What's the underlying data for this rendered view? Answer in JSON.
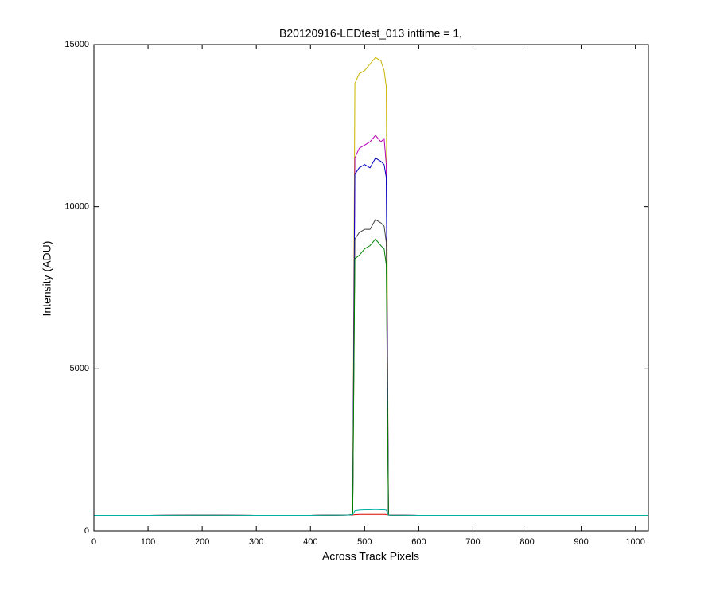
{
  "chart_data": {
    "type": "line",
    "title": "B20120916-LEDtest_013 inttime = 1,",
    "x_label": "Across Track Pixels",
    "y_label": "Intensity (ADU)",
    "xlim": [
      0,
      1024
    ],
    "ylim": [
      0,
      15000
    ],
    "xticks": [
      0,
      100,
      200,
      300,
      400,
      500,
      600,
      700,
      800,
      900,
      1000
    ],
    "yticks": [
      0,
      5000,
      10000,
      15000
    ],
    "x": [
      0,
      100,
      200,
      300,
      400,
      470,
      478,
      482,
      490,
      500,
      510,
      520,
      530,
      536,
      540,
      544,
      550,
      600,
      700,
      800,
      900,
      1023
    ],
    "series": [
      {
        "color": "#c8b400",
        "values": [
          480,
          480,
          485,
          480,
          480,
          490,
          500,
          13800,
          14100,
          14200,
          14400,
          14600,
          14500,
          14200,
          13700,
          490,
          485,
          480,
          480,
          480,
          480,
          480
        ]
      },
      {
        "color": "#b000b0",
        "values": [
          480,
          480,
          485,
          480,
          480,
          490,
          500,
          11500,
          11800,
          11900,
          12000,
          12200,
          12000,
          12100,
          11300,
          490,
          485,
          480,
          480,
          480,
          480,
          480
        ]
      },
      {
        "color": "#0000c0",
        "values": [
          480,
          480,
          485,
          480,
          480,
          490,
          500,
          11000,
          11200,
          11300,
          11200,
          11500,
          11400,
          11300,
          10900,
          490,
          485,
          480,
          480,
          480,
          480,
          480
        ]
      },
      {
        "color": "#404040",
        "values": [
          480,
          480,
          485,
          480,
          480,
          490,
          500,
          9000,
          9200,
          9300,
          9300,
          9600,
          9500,
          9400,
          8900,
          490,
          485,
          480,
          480,
          480,
          480,
          480
        ]
      },
      {
        "color": "#008000",
        "values": [
          480,
          480,
          485,
          480,
          480,
          490,
          500,
          8400,
          8500,
          8700,
          8800,
          9000,
          8800,
          8700,
          8200,
          490,
          485,
          480,
          480,
          480,
          480,
          480
        ]
      },
      {
        "color": "#e00000",
        "values": [
          480,
          480,
          485,
          480,
          480,
          490,
          495,
          500,
          510,
          510,
          510,
          510,
          510,
          510,
          505,
          490,
          485,
          480,
          480,
          480,
          480,
          480
        ]
      },
      {
        "color": "#00b0a0",
        "values": [
          480,
          480,
          485,
          480,
          480,
          490,
          500,
          620,
          640,
          650,
          650,
          660,
          650,
          650,
          640,
          490,
          485,
          480,
          480,
          480,
          480,
          480
        ]
      }
    ]
  }
}
